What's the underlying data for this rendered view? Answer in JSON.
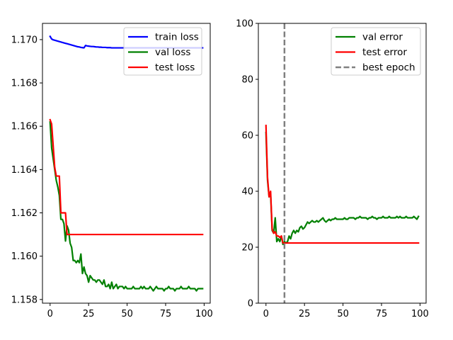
{
  "chart_data": [
    {
      "type": "line",
      "title": "",
      "xlabel": "",
      "ylabel": "",
      "xlim": [
        -4.95,
        103.95
      ],
      "ylim": [
        1.15783,
        1.17075
      ],
      "xticks": [
        0,
        25,
        50,
        75,
        100
      ],
      "yticks": [
        1.158,
        1.16,
        1.162,
        1.164,
        1.166,
        1.168,
        1.17
      ],
      "ytick_labels": [
        "1.158",
        "1.160",
        "1.162",
        "1.164",
        "1.166",
        "1.168",
        "1.170"
      ],
      "legend_position": "upper right",
      "series": [
        {
          "name": "train loss",
          "color": "#0000ff",
          "style": "solid",
          "x": [
            0,
            1,
            2,
            3,
            4,
            5,
            6,
            7,
            8,
            9,
            10,
            11,
            12,
            13,
            14,
            15,
            16,
            17,
            18,
            19,
            20,
            21,
            22,
            23,
            24,
            25,
            26,
            27,
            28,
            29,
            30,
            31,
            32,
            33,
            34,
            35,
            36,
            37,
            38,
            39,
            40,
            41,
            42,
            43,
            44,
            45,
            46,
            47,
            48,
            49,
            50,
            51,
            52,
            53,
            54,
            55,
            56,
            57,
            58,
            59,
            60,
            61,
            62,
            63,
            64,
            65,
            66,
            67,
            68,
            69,
            70,
            71,
            72,
            73,
            74,
            75,
            76,
            77,
            78,
            79,
            80,
            81,
            82,
            83,
            84,
            85,
            86,
            87,
            88,
            89,
            90,
            91,
            92,
            93,
            94,
            95,
            96,
            97,
            98,
            99
          ],
          "y": [
            1.17015,
            1.17003,
            1.16999,
            1.16997,
            1.16995,
            1.16993,
            1.16991,
            1.16989,
            1.16987,
            1.16985,
            1.16983,
            1.16981,
            1.16979,
            1.16977,
            1.16975,
            1.16973,
            1.16971,
            1.16969,
            1.16967,
            1.16966,
            1.16964,
            1.16963,
            1.16962,
            1.16973,
            1.16971,
            1.1697,
            1.16969,
            1.16968,
            1.16968,
            1.16967,
            1.16966,
            1.16966,
            1.16965,
            1.16965,
            1.16964,
            1.16964,
            1.16964,
            1.16963,
            1.16963,
            1.16963,
            1.16962,
            1.16962,
            1.16962,
            1.16962,
            1.16962,
            1.16962,
            1.16962,
            1.16962,
            1.16962,
            1.16962,
            1.16962,
            1.16962,
            1.16962,
            1.16962,
            1.16962,
            1.16962,
            1.16962,
            1.16962,
            1.16962,
            1.16962,
            1.16962,
            1.16962,
            1.16962,
            1.16962,
            1.16962,
            1.16962,
            1.16962,
            1.16962,
            1.16962,
            1.16962,
            1.16962,
            1.16962,
            1.16962,
            1.16962,
            1.16962,
            1.16962,
            1.16962,
            1.16962,
            1.16962,
            1.16962,
            1.16962,
            1.16962,
            1.16962,
            1.16962,
            1.16962,
            1.16962,
            1.16962,
            1.16962,
            1.16962,
            1.16962,
            1.16962,
            1.16962,
            1.16962,
            1.16962,
            1.16962,
            1.16962,
            1.16962,
            1.16962,
            1.16962,
            1.16962
          ]
        },
        {
          "name": "val loss",
          "color": "#008000",
          "style": "solid",
          "x": [
            0,
            1,
            2,
            3,
            4,
            5,
            6,
            7,
            8,
            9,
            10,
            11,
            12,
            13,
            14,
            15,
            16,
            17,
            18,
            19,
            20,
            21,
            22,
            23,
            24,
            25,
            26,
            27,
            28,
            29,
            30,
            31,
            32,
            33,
            34,
            35,
            36,
            37,
            38,
            39,
            40,
            41,
            42,
            43,
            44,
            45,
            46,
            47,
            48,
            49,
            50,
            51,
            52,
            53,
            54,
            55,
            56,
            57,
            58,
            59,
            60,
            61,
            62,
            63,
            64,
            65,
            66,
            67,
            68,
            69,
            70,
            71,
            72,
            73,
            74,
            75,
            76,
            77,
            78,
            79,
            80,
            81,
            82,
            83,
            84,
            85,
            86,
            87,
            88,
            89,
            90,
            91,
            92,
            93,
            94,
            95,
            96,
            97,
            98,
            99
          ],
          "y": [
            1.1662,
            1.165,
            1.1645,
            1.164,
            1.1635,
            1.1632,
            1.1628,
            1.1617,
            1.1617,
            1.1615,
            1.1607,
            1.1614,
            1.1612,
            1.1606,
            1.1604,
            1.1598,
            1.1598,
            1.1597,
            1.1598,
            1.1597,
            1.1601,
            1.1592,
            1.1595,
            1.1592,
            1.1591,
            1.1588,
            1.1591,
            1.159,
            1.1589,
            1.1589,
            1.1588,
            1.1589,
            1.1589,
            1.1588,
            1.1587,
            1.1589,
            1.1586,
            1.1586,
            1.1587,
            1.1585,
            1.1588,
            1.1585,
            1.1586,
            1.1587,
            1.1585,
            1.1586,
            1.1586,
            1.1586,
            1.1585,
            1.1586,
            1.1585,
            1.1585,
            1.1585,
            1.1585,
            1.1586,
            1.1585,
            1.1585,
            1.1585,
            1.1585,
            1.1586,
            1.1585,
            1.1586,
            1.1585,
            1.1585,
            1.1585,
            1.1586,
            1.1585,
            1.1584,
            1.1585,
            1.1586,
            1.1585,
            1.1585,
            1.1585,
            1.1585,
            1.1584,
            1.1585,
            1.1585,
            1.1586,
            1.1585,
            1.1585,
            1.1585,
            1.1584,
            1.1585,
            1.1585,
            1.1585,
            1.1586,
            1.1585,
            1.1585,
            1.1585,
            1.1585,
            1.1586,
            1.1585,
            1.1585,
            1.1585,
            1.1585,
            1.1584,
            1.1585,
            1.1585,
            1.1585,
            1.1585
          ]
        },
        {
          "name": "test loss",
          "color": "#ff0000",
          "style": "solid",
          "x": [
            0,
            1,
            2,
            3,
            4,
            5,
            6,
            7,
            8,
            9,
            10,
            11,
            12,
            13,
            14,
            15,
            16,
            17,
            18,
            19,
            20,
            21,
            22,
            23,
            24,
            25,
            26,
            27,
            28,
            29,
            30,
            31,
            32,
            33,
            34,
            35,
            36,
            37,
            38,
            39,
            40,
            41,
            42,
            43,
            44,
            45,
            46,
            47,
            48,
            49,
            50,
            51,
            52,
            53,
            54,
            55,
            56,
            57,
            58,
            59,
            60,
            61,
            62,
            63,
            64,
            65,
            66,
            67,
            68,
            69,
            70,
            71,
            72,
            73,
            74,
            75,
            76,
            77,
            78,
            79,
            80,
            81,
            82,
            83,
            84,
            85,
            86,
            87,
            88,
            89,
            90,
            91,
            92,
            93,
            94,
            95,
            96,
            97,
            98,
            99
          ],
          "y": [
            1.1663,
            1.1661,
            1.1651,
            1.1641,
            1.1637,
            1.1637,
            1.1637,
            1.162,
            1.162,
            1.162,
            1.162,
            1.161,
            1.161,
            1.161,
            1.161,
            1.161,
            1.161,
            1.161,
            1.161,
            1.161,
            1.161,
            1.161,
            1.161,
            1.161,
            1.161,
            1.161,
            1.161,
            1.161,
            1.161,
            1.161,
            1.161,
            1.161,
            1.161,
            1.161,
            1.161,
            1.161,
            1.161,
            1.161,
            1.161,
            1.161,
            1.161,
            1.161,
            1.161,
            1.161,
            1.161,
            1.161,
            1.161,
            1.161,
            1.161,
            1.161,
            1.161,
            1.161,
            1.161,
            1.161,
            1.161,
            1.161,
            1.161,
            1.161,
            1.161,
            1.161,
            1.161,
            1.161,
            1.161,
            1.161,
            1.161,
            1.161,
            1.161,
            1.161,
            1.161,
            1.161,
            1.161,
            1.161,
            1.161,
            1.161,
            1.161,
            1.161,
            1.161,
            1.161,
            1.161,
            1.161,
            1.161,
            1.161,
            1.161,
            1.161,
            1.161,
            1.161,
            1.161,
            1.161,
            1.161,
            1.161,
            1.161,
            1.161,
            1.161,
            1.161,
            1.161,
            1.161,
            1.161,
            1.161,
            1.161,
            1.161
          ]
        }
      ]
    },
    {
      "type": "line",
      "title": "",
      "xlabel": "",
      "ylabel": "",
      "xlim": [
        -4.95,
        103.95
      ],
      "ylim": [
        0,
        100
      ],
      "xticks": [
        0,
        25,
        50,
        75,
        100
      ],
      "yticks": [
        0,
        20,
        40,
        60,
        80,
        100
      ],
      "ytick_labels": [
        "0",
        "20",
        "40",
        "60",
        "80",
        "100"
      ],
      "legend_position": "upper right",
      "series": [
        {
          "name": "val error",
          "color": "#008000",
          "style": "solid",
          "x": [
            0,
            1,
            2,
            3,
            4,
            5,
            6,
            7,
            8,
            9,
            10,
            11,
            12,
            13,
            14,
            15,
            16,
            17,
            18,
            19,
            20,
            21,
            22,
            23,
            24,
            25,
            26,
            27,
            28,
            29,
            30,
            31,
            32,
            33,
            34,
            35,
            36,
            37,
            38,
            39,
            40,
            41,
            42,
            43,
            44,
            45,
            46,
            47,
            48,
            49,
            50,
            51,
            52,
            53,
            54,
            55,
            56,
            57,
            58,
            59,
            60,
            61,
            62,
            63,
            64,
            65,
            66,
            67,
            68,
            69,
            70,
            71,
            72,
            73,
            74,
            75,
            76,
            77,
            78,
            79,
            80,
            81,
            82,
            83,
            84,
            85,
            86,
            87,
            88,
            89,
            90,
            91,
            92,
            93,
            94,
            95,
            96,
            97,
            98,
            99
          ],
          "y": [
            61,
            44,
            38,
            39,
            26,
            25,
            30.5,
            22,
            23,
            22,
            24,
            21,
            22,
            21.5,
            22,
            24,
            23,
            25,
            26,
            25,
            26,
            25.5,
            27,
            27.5,
            26.5,
            27,
            28,
            29,
            28.5,
            29,
            29.5,
            29,
            29,
            29.5,
            29,
            29.5,
            30,
            30.5,
            29.5,
            29,
            29.5,
            30,
            29.5,
            30,
            30,
            30.5,
            30,
            30,
            30,
            30,
            30,
            30.5,
            30,
            30,
            30.5,
            30.5,
            30.5,
            30.5,
            30,
            30.5,
            30.5,
            31,
            30.5,
            30.5,
            30.5,
            30.5,
            30,
            30.5,
            30.5,
            31,
            30.5,
            30.5,
            30,
            30.5,
            30.5,
            30.5,
            31,
            30.5,
            30.5,
            30.5,
            31,
            30.5,
            30.5,
            30.5,
            30.5,
            31,
            30.5,
            31,
            30.5,
            30.5,
            30.5,
            31,
            30.5,
            30.5,
            30.5,
            30.5,
            31,
            30.5,
            30,
            31
          ]
        },
        {
          "name": "test error",
          "color": "#ff0000",
          "style": "solid",
          "x": [
            0,
            1,
            2,
            3,
            4,
            5,
            6,
            7,
            8,
            9,
            10,
            11,
            12,
            13,
            14,
            15,
            16,
            17,
            18,
            19,
            20,
            21,
            22,
            23,
            24,
            25,
            26,
            27,
            28,
            29,
            30,
            31,
            32,
            33,
            34,
            35,
            36,
            37,
            38,
            39,
            40,
            41,
            42,
            43,
            44,
            45,
            46,
            47,
            48,
            49,
            50,
            51,
            52,
            53,
            54,
            55,
            56,
            57,
            58,
            59,
            60,
            61,
            62,
            63,
            64,
            65,
            66,
            67,
            68,
            69,
            70,
            71,
            72,
            73,
            74,
            75,
            76,
            77,
            78,
            79,
            80,
            81,
            82,
            83,
            84,
            85,
            86,
            87,
            88,
            89,
            90,
            91,
            92,
            93,
            94,
            95,
            96,
            97,
            98,
            99
          ],
          "y": [
            63.5,
            45,
            38,
            40,
            26.5,
            25,
            25.5,
            24,
            24,
            23.5,
            24,
            21.5,
            21.5,
            21.5,
            21.5,
            21.5,
            21.5,
            21.5,
            21.5,
            21.5,
            21.5,
            21.5,
            21.5,
            21.5,
            21.5,
            21.5,
            21.5,
            21.5,
            21.5,
            21.5,
            21.5,
            21.5,
            21.5,
            21.5,
            21.5,
            21.5,
            21.5,
            21.5,
            21.5,
            21.5,
            21.5,
            21.5,
            21.5,
            21.5,
            21.5,
            21.5,
            21.5,
            21.5,
            21.5,
            21.5,
            21.5,
            21.5,
            21.5,
            21.5,
            21.5,
            21.5,
            21.5,
            21.5,
            21.5,
            21.5,
            21.5,
            21.5,
            21.5,
            21.5,
            21.5,
            21.5,
            21.5,
            21.5,
            21.5,
            21.5,
            21.5,
            21.5,
            21.5,
            21.5,
            21.5,
            21.5,
            21.5,
            21.5,
            21.5,
            21.5,
            21.5,
            21.5,
            21.5,
            21.5,
            21.5,
            21.5,
            21.5,
            21.5,
            21.5,
            21.5,
            21.5,
            21.5,
            21.5,
            21.5,
            21.5,
            21.5,
            21.5,
            21.5,
            21.5,
            21.5
          ]
        },
        {
          "name": "best epoch",
          "color": "#808080",
          "style": "dashed",
          "vline_x": 12
        }
      ]
    }
  ]
}
